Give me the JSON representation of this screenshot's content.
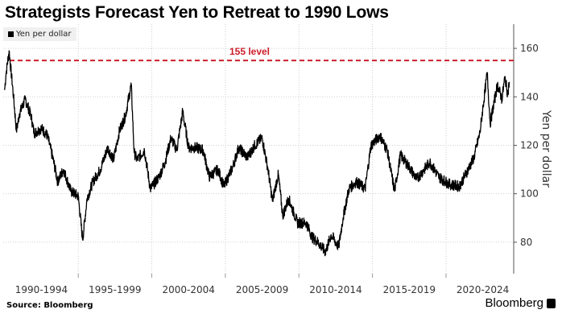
{
  "chart_data": {
    "type": "line",
    "title": "Strategists Forecast Yen to Retreat to 1990 Lows",
    "ylabel": "Yen per dollar",
    "xlabel": "",
    "ylim": [
      67,
      170
    ],
    "xlim": [
      1989.9,
      2024.6
    ],
    "yticks": [
      80,
      100,
      120,
      140,
      160
    ],
    "xtick_labels": [
      "1990-1994",
      "1995-1999",
      "2000-2004",
      "2005-2009",
      "2010-2014",
      "2015-2019",
      "2020-2024"
    ],
    "xtick_starts": [
      1990,
      1995,
      2000,
      2005,
      2010,
      2015,
      2020
    ],
    "grid": true,
    "legend": {
      "label": "Yen per dollar",
      "placement": "top-left"
    },
    "reference_line": {
      "value": 155,
      "label": "155 level",
      "color": "#cc1f2b"
    },
    "series": [
      {
        "name": "Yen per dollar",
        "color": "#000000",
        "x": [
          1990.0,
          1990.1,
          1990.3,
          1990.6,
          1990.8,
          1991.0,
          1991.4,
          1991.8,
          1992.0,
          1992.5,
          1992.9,
          1993.3,
          1993.6,
          1994.0,
          1994.5,
          1995.0,
          1995.3,
          1995.6,
          1996.0,
          1996.5,
          1997.0,
          1997.4,
          1997.8,
          1998.2,
          1998.6,
          1998.8,
          1999.0,
          1999.5,
          1999.9,
          2000.5,
          2000.9,
          2001.3,
          2001.7,
          2002.1,
          2002.5,
          2003.0,
          2003.5,
          2003.9,
          2004.5,
          2004.9,
          2005.5,
          2005.9,
          2006.5,
          2007.0,
          2007.5,
          2007.9,
          2008.2,
          2008.6,
          2008.9,
          2009.3,
          2009.9,
          2010.5,
          2010.9,
          2011.3,
          2011.8,
          2012.2,
          2012.7,
          2013.0,
          2013.4,
          2013.9,
          2014.5,
          2014.9,
          2015.5,
          2016.0,
          2016.5,
          2016.9,
          2017.5,
          2018.0,
          2018.9,
          2019.5,
          2020.2,
          2020.9,
          2021.5,
          2021.9,
          2022.3,
          2022.8,
          2023.0,
          2023.5,
          2023.8,
          2024.0,
          2024.2,
          2024.3
        ],
        "y": [
          143,
          150,
          159,
          140,
          126,
          133,
          139,
          132,
          125,
          127,
          124,
          114,
          105,
          110,
          101,
          99,
          81,
          98,
          105,
          110,
          119,
          114,
          126,
          132,
          145,
          117,
          114,
          118,
          102,
          107,
          113,
          123,
          118,
          134,
          119,
          119,
          118,
          107,
          110,
          103,
          111,
          119,
          115,
          120,
          123,
          110,
          97,
          108,
          91,
          98,
          88,
          88,
          82,
          80,
          76,
          83,
          78,
          90,
          102,
          105,
          102,
          120,
          124,
          118,
          101,
          116,
          111,
          106,
          113,
          107,
          104,
          103,
          110,
          115,
          125,
          150,
          129,
          145,
          139,
          148,
          141,
          146
        ]
      }
    ]
  }
}
